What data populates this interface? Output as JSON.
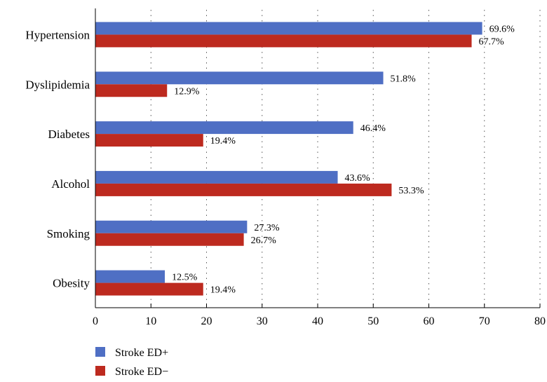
{
  "chart_data": {
    "type": "bar",
    "orientation": "horizontal",
    "categories": [
      "Hypertension",
      "Dyslipidemia",
      "Diabetes",
      "Alcohol",
      "Smoking",
      "Obesity"
    ],
    "series": [
      {
        "name": "Stroke ED+",
        "color": "#4f6fc4",
        "values": [
          69.6,
          51.8,
          46.4,
          43.6,
          27.3,
          12.5
        ],
        "labels": [
          "69.6%",
          "51.8%",
          "46.4%",
          "43.6%",
          "27.3%",
          "12.5%"
        ]
      },
      {
        "name": "Stroke ED−",
        "color": "#bd2a1f",
        "values": [
          67.7,
          12.9,
          19.4,
          53.3,
          26.7,
          19.4
        ],
        "labels": [
          "67.7%",
          "12.9%",
          "19.4%",
          "53.3%",
          "26.7%",
          "19.4%"
        ]
      }
    ],
    "xlim": [
      0,
      80
    ],
    "xticks": [
      0,
      10,
      20,
      30,
      40,
      50,
      60,
      70,
      80
    ],
    "grid": "vertical-dotted",
    "legend_position": "bottom-left"
  }
}
